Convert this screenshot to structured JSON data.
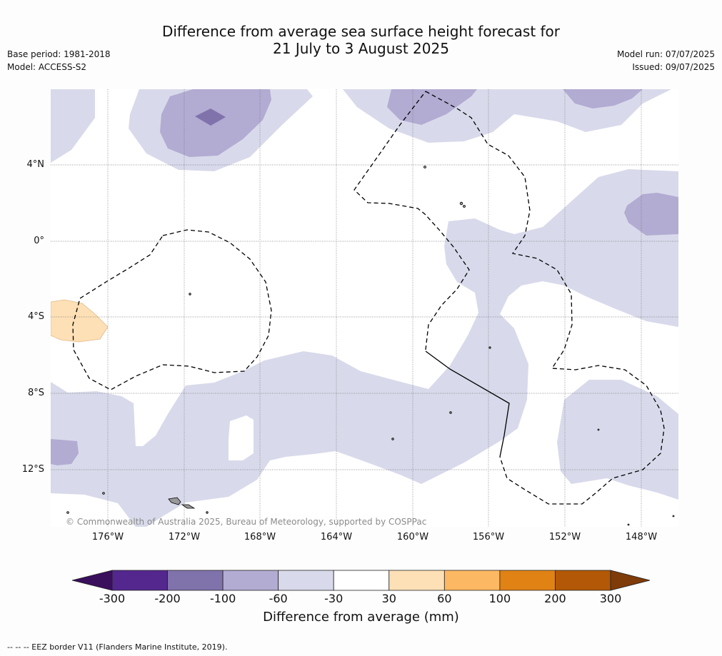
{
  "header": {
    "title_line1": "Difference from average sea surface height forecast for",
    "title_line2": "21 July to 3 August 2025",
    "base_period": "Base period: 1981-2018",
    "model": "Model: ACCESS-S2",
    "model_run": "Model run: 07/07/2025",
    "issued": "Issued: 09/07/2025"
  },
  "map": {
    "lat_labels": [
      "4°N",
      "0°",
      "4°S",
      "8°S",
      "12°S"
    ],
    "lon_labels": [
      "176°W",
      "172°W",
      "168°W",
      "164°W",
      "160°W",
      "156°W",
      "152°W",
      "148°W"
    ],
    "copyright": "© Commonwealth of Australia 2025, Bureau of Meteorology, supported by COSPPac"
  },
  "colorbar": {
    "title": "Difference from average (mm)",
    "tick_labels": [
      "-300",
      "-200",
      "-100",
      "-60",
      "-30",
      "30",
      "60",
      "100",
      "200",
      "300"
    ],
    "colors": [
      "#3a0f5c",
      "#54278f",
      "#8073ac",
      "#b2abd2",
      "#d8daeb",
      "#ffffff",
      "#fee0b6",
      "#fdb863",
      "#e08214",
      "#b35806",
      "#7f3b08"
    ]
  },
  "footer": {
    "legend_text": "--  --  -- EEZ border V11 (Flanders Marine Institute, 2019)."
  }
}
